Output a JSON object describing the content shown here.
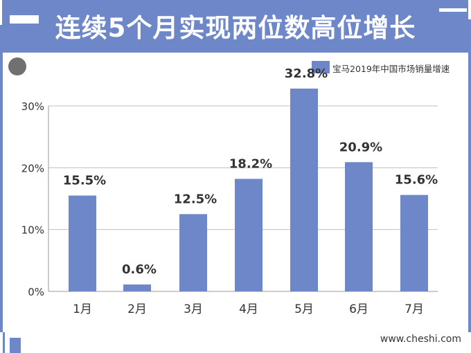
{
  "header": {
    "title": "连续5个月实现两位数高位增长"
  },
  "footer": {
    "website": "www.cheshi.com"
  },
  "colors": {
    "accent": "#6e87c8",
    "bar": "#6e87c8",
    "grid": "#bfbfbf",
    "text": "#333333"
  },
  "chart_data": {
    "type": "bar",
    "title": "",
    "xlabel": "",
    "ylabel": "",
    "categories": [
      "1月",
      "2月",
      "3月",
      "4月",
      "5月",
      "6月",
      "7月"
    ],
    "series": [
      {
        "name": "宝马2019年中国市场销量增速",
        "values": [
          15.5,
          0.6,
          12.5,
          18.2,
          32.8,
          20.9,
          15.6
        ]
      }
    ],
    "data_labels": [
      "15.5%",
      "0.6%",
      "12.5%",
      "18.2%",
      "32.8%",
      "20.9%",
      "15.6%"
    ],
    "y_ticks": [
      "0%",
      "10%",
      "20%",
      "30%"
    ],
    "y_tick_values": [
      0,
      10,
      20,
      30
    ],
    "ylim": [
      0,
      30
    ],
    "grid": true,
    "legend_position": "top-right"
  }
}
